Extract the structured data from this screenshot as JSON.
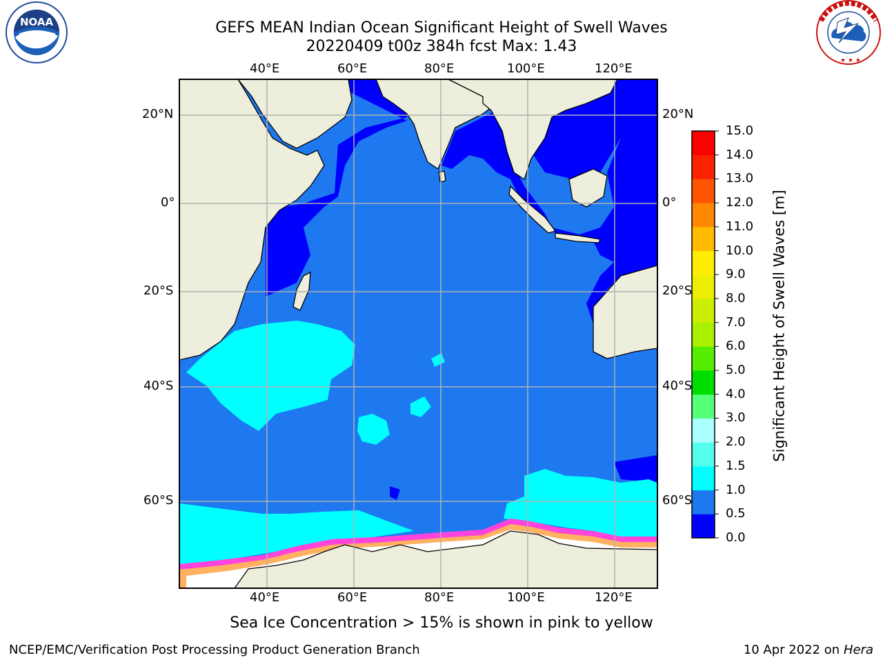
{
  "header": {
    "title_line1": "GEFS MEAN Indian Ocean Significant Height of Swell Waves",
    "title_line2": "20220409 t00z 384h fcst   Max: 1.43"
  },
  "logos": {
    "left": {
      "name": "noaa-logo",
      "text": "NOAA",
      "ring_text": "NATIONAL OCEANIC AND ATMOSPHERIC ADMINISTRATION · U.S. DEPARTMENT OF COMMERCE"
    },
    "right": {
      "name": "nws-logo",
      "ring_text": "NATIONAL WEATHER SERVICE"
    }
  },
  "map": {
    "lon_ticks": [
      "40°E",
      "60°E",
      "80°E",
      "100°E",
      "120°E"
    ],
    "lat_ticks_left": [
      "20°N",
      "0°",
      "20°S",
      "40°S",
      "60°S"
    ],
    "lat_ticks_right": [
      "20°N",
      "0°",
      "20°S",
      "40°S",
      "60°S"
    ],
    "colors": {
      "land": "#eeeedd",
      "swell_0_05": "#0000ff",
      "swell_05_10": "#1e78f0",
      "swell_10_15": "#00ffff",
      "ice_pink": "#ff44dd",
      "ice_orange": "#ffb060",
      "ice_white": "#ffffff",
      "grid": "#b0b0b0"
    }
  },
  "colorbar": {
    "label": "Significant Height of Swell Waves [m]",
    "ticks": [
      "0.0",
      "0.5",
      "1.0",
      "1.5",
      "2.0",
      "3.0",
      "4.0",
      "5.0",
      "6.0",
      "7.0",
      "8.0",
      "9.0",
      "10.0",
      "11.0",
      "12.0",
      "13.0",
      "14.0",
      "15.0"
    ],
    "colors": [
      "#0000ff",
      "#1e78f0",
      "#00ffff",
      "#55ffee",
      "#aaffff",
      "#55ff77",
      "#00dd00",
      "#55ee00",
      "#aaee00",
      "#ccee00",
      "#eeee00",
      "#ffee00",
      "#ffbb00",
      "#ff8800",
      "#ff5500",
      "#ff2200",
      "#ff0000"
    ]
  },
  "caption": "Sea Ice Concentration > 15% is shown in pink to yellow",
  "footer": {
    "left": "NCEP/EMC/Verification Post Processing Product Generation Branch",
    "right_prefix": "10 Apr 2022 on ",
    "right_host": "Hera"
  }
}
